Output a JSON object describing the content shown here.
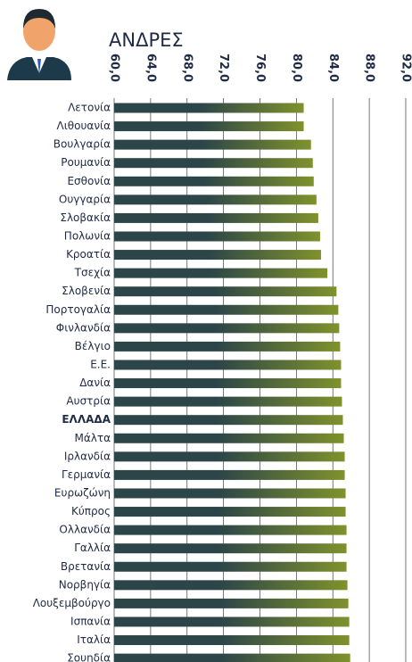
{
  "chart_data": {
    "type": "bar",
    "orientation": "horizontal",
    "title": "ΑΝΔΡΕΣ",
    "categories": [
      "Λετονία",
      "Λιθουανία",
      "Βουλγαρία",
      "Ρουμανία",
      "Εσθονία",
      "Ουγγαρία",
      "Σλοβακία",
      "Πολωνία",
      "Κροατία",
      "Τσεχία",
      "Σλοβενία",
      "Πορτογαλία",
      "Φινλανδία",
      "Βέλγιο",
      "Ε.Ε.",
      "Δανία",
      "Αυστρία",
      "ΕΛΛΑΔΑ",
      "Μάλτα",
      "Ιρλανδία",
      "Γερμανία",
      "Ευρωζώνη",
      "Κύπρος",
      "Ολλανδία",
      "Γαλλία",
      "Βρετανία",
      "Νορβηγία",
      "Λουξεμβούργο",
      "Ισπανία",
      "Ιταλία",
      "Σουηδία"
    ],
    "values": [
      80.8,
      80.8,
      81.6,
      81.8,
      81.9,
      82.2,
      82.4,
      82.6,
      82.7,
      83.4,
      84.4,
      84.6,
      84.7,
      84.8,
      84.9,
      84.9,
      85.0,
      85.1,
      85.2,
      85.3,
      85.3,
      85.4,
      85.4,
      85.5,
      85.5,
      85.5,
      85.6,
      85.7,
      85.8,
      85.8,
      85.9
    ],
    "xlim": [
      60,
      92
    ],
    "xticks": [
      {
        "value": 60,
        "label": "60,0"
      },
      {
        "value": 64,
        "label": "64,0"
      },
      {
        "value": 68,
        "label": "68,0"
      },
      {
        "value": 72,
        "label": "72,0"
      },
      {
        "value": 76,
        "label": "76,0"
      },
      {
        "value": 80,
        "label": "80,0"
      },
      {
        "value": 84,
        "label": "84,0"
      },
      {
        "value": 88,
        "label": "88,0"
      },
      {
        "value": 92,
        "label": "92,0"
      }
    ],
    "grid": true,
    "colors": [
      "#2c4548",
      "#7f922c"
    ],
    "highlight": 17
  }
}
